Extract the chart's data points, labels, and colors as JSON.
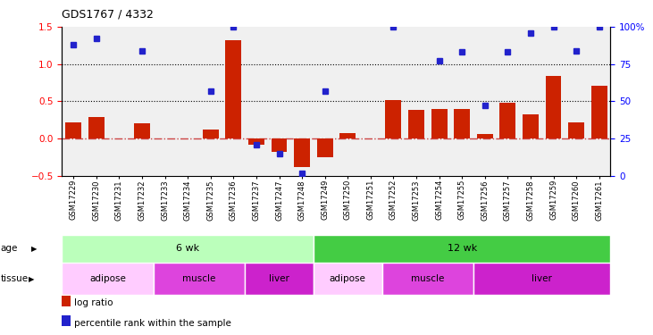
{
  "title": "GDS1767 / 4332",
  "samples": [
    "GSM17229",
    "GSM17230",
    "GSM17231",
    "GSM17232",
    "GSM17233",
    "GSM17234",
    "GSM17235",
    "GSM17236",
    "GSM17237",
    "GSM17247",
    "GSM17248",
    "GSM17249",
    "GSM17250",
    "GSM17251",
    "GSM17252",
    "GSM17253",
    "GSM17254",
    "GSM17255",
    "GSM17256",
    "GSM17257",
    "GSM17258",
    "GSM17259",
    "GSM17260",
    "GSM17261"
  ],
  "log_ratio": [
    0.22,
    0.29,
    0.0,
    0.21,
    0.0,
    0.0,
    0.12,
    1.32,
    -0.08,
    -0.18,
    -0.38,
    -0.25,
    0.07,
    0.0,
    0.52,
    0.38,
    0.4,
    0.4,
    0.06,
    0.48,
    0.32,
    0.84,
    0.22,
    0.71
  ],
  "pct_rank": [
    88,
    92,
    null,
    84,
    null,
    null,
    57,
    100,
    21,
    15,
    2,
    57,
    null,
    null,
    100,
    null,
    77,
    83,
    47,
    83,
    96,
    100,
    84,
    100
  ],
  "bar_color": "#cc2200",
  "dot_color": "#2222cc",
  "age_groups": [
    {
      "label": "6 wk",
      "start": 0,
      "end": 11,
      "color": "#bbffbb"
    },
    {
      "label": "12 wk",
      "start": 11,
      "end": 24,
      "color": "#44cc44"
    }
  ],
  "tissue_groups": [
    {
      "label": "adipose",
      "start": 0,
      "end": 4,
      "color": "#ffccff"
    },
    {
      "label": "muscle",
      "start": 4,
      "end": 8,
      "color": "#dd44dd"
    },
    {
      "label": "liver",
      "start": 8,
      "end": 11,
      "color": "#cc22cc"
    },
    {
      "label": "adipose",
      "start": 11,
      "end": 14,
      "color": "#ffccff"
    },
    {
      "label": "muscle",
      "start": 14,
      "end": 18,
      "color": "#dd44dd"
    },
    {
      "label": "liver",
      "start": 18,
      "end": 24,
      "color": "#cc22cc"
    }
  ],
  "ylim_left": [
    -0.5,
    1.5
  ],
  "ylim_right": [
    0,
    100
  ],
  "yticks_left": [
    -0.5,
    0.0,
    0.5,
    1.0,
    1.5
  ],
  "yticks_right": [
    0,
    25,
    50,
    75,
    100
  ],
  "hlines_dotted": [
    0.5,
    1.0
  ],
  "zero_line_color": "#cc4444",
  "background_color": "#f0f0f0",
  "legend_items": [
    {
      "label": "log ratio",
      "color": "#cc2200"
    },
    {
      "label": "percentile rank within the sample",
      "color": "#2222cc"
    }
  ]
}
